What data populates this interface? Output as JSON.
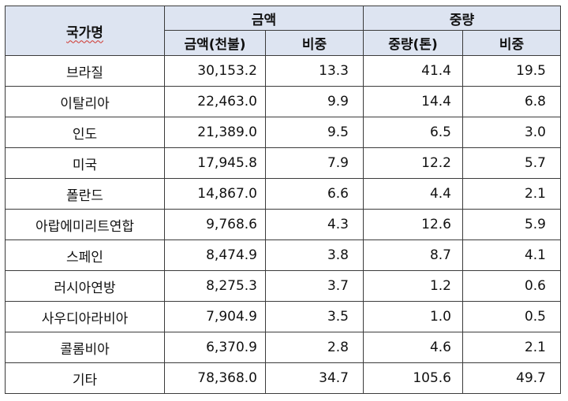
{
  "table": {
    "header": {
      "country": "국가명",
      "amount_group": "금액",
      "weight_group": "중량",
      "amount_value": "금액(천불)",
      "amount_share": "비중",
      "weight_value": "중량(톤)",
      "weight_share": "비중"
    },
    "rows": [
      {
        "country": "브라질",
        "amount": "30,153.2",
        "amount_share": "13.3",
        "weight": "41.4",
        "weight_share": "19.5"
      },
      {
        "country": "이탈리아",
        "amount": "22,463.0",
        "amount_share": "9.9",
        "weight": "14.4",
        "weight_share": "6.8"
      },
      {
        "country": "인도",
        "amount": "21,389.0",
        "amount_share": "9.5",
        "weight": "6.5",
        "weight_share": "3.0"
      },
      {
        "country": "미국",
        "amount": "17,945.8",
        "amount_share": "7.9",
        "weight": "12.2",
        "weight_share": "5.7"
      },
      {
        "country": "폴란드",
        "amount": "14,867.0",
        "amount_share": "6.6",
        "weight": "4.4",
        "weight_share": "2.1"
      },
      {
        "country": "아랍에미리트연합",
        "amount": "9,768.6",
        "amount_share": "4.3",
        "weight": "12.6",
        "weight_share": "5.9"
      },
      {
        "country": "스페인",
        "amount": "8,474.9",
        "amount_share": "3.8",
        "weight": "8.7",
        "weight_share": "4.1"
      },
      {
        "country": "러시아연방",
        "amount": "8,275.3",
        "amount_share": "3.7",
        "weight": "1.2",
        "weight_share": "0.6"
      },
      {
        "country": "사우디아라비아",
        "amount": "7,904.9",
        "amount_share": "3.5",
        "weight": "1.0",
        "weight_share": "0.5"
      },
      {
        "country": "콜롬비아",
        "amount": "6,370.9",
        "amount_share": "2.8",
        "weight": "4.6",
        "weight_share": "2.1"
      },
      {
        "country": "기타",
        "amount": "78,368.0",
        "amount_share": "34.7",
        "weight": "105.6",
        "weight_share": "49.7"
      }
    ]
  }
}
